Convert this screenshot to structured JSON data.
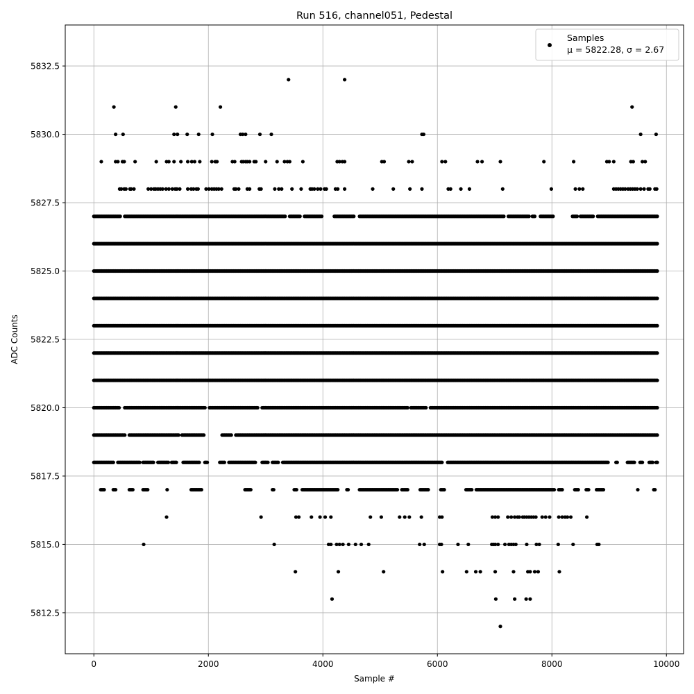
{
  "chart_data": {
    "type": "scatter",
    "title": "Run 516, channel051, Pedestal",
    "xlabel": "Sample #",
    "ylabel": "ADC Counts",
    "xlim": [
      -500,
      10300
    ],
    "ylim": [
      5811,
      5834
    ],
    "xticks": [
      0,
      2000,
      4000,
      6000,
      8000,
      10000
    ],
    "xtick_labels": [
      "0",
      "2000",
      "4000",
      "6000",
      "8000",
      "10000"
    ],
    "yticks": [
      5812.5,
      5815.0,
      5817.5,
      5820.0,
      5822.5,
      5825.0,
      5827.5,
      5830.0,
      5832.5
    ],
    "ytick_labels": [
      "5812.5",
      "5815.0",
      "5817.5",
      "5820.0",
      "5822.5",
      "5825.0",
      "5827.5",
      "5830.0",
      "5832.5"
    ],
    "grid": true,
    "legend_position": "top-right",
    "marker_color": "#000000",
    "series": [
      {
        "name": "Samples",
        "stats_label": "μ = 5822.28, σ = 2.67",
        "n_samples": 9840,
        "levels": [
          {
            "y": 5832,
            "x": [
              3400,
              4380
            ]
          },
          {
            "y": 5831,
            "x": [
              350,
              1430,
              2210,
              9400
            ]
          },
          {
            "y": 5830,
            "x": [
              380,
              510,
              1400,
              1460,
              1630,
              1830,
              2070,
              2560,
              2600,
              2650,
              2900,
              3100,
              5730,
              5760,
              9550,
              9820
            ]
          },
          {
            "y": 5829,
            "x": [
              130,
              380,
              420,
              500,
              530,
              720,
              1090,
              1270,
              1310,
              1400,
              1520,
              1640,
              1710,
              1760,
              1850,
              2060,
              2120,
              2150,
              2420,
              2460,
              2580,
              2610,
              2650,
              2680,
              2720,
              2800,
              2830,
              3000,
              3200,
              3330,
              3380,
              3420,
              3650,
              4250,
              4290,
              4340,
              4380,
              5030,
              5070,
              5500,
              5560,
              6080,
              6140,
              6700,
              6780,
              7100,
              7860,
              8380,
              8960,
              9000,
              9080,
              9380,
              9420,
              9580,
              9630
            ]
          },
          {
            "y": 5828,
            "x": [
              450,
              480,
              530,
              560,
              630,
              650,
              700,
              950,
              1000,
              1050,
              1080,
              1120,
              1160,
              1200,
              1260,
              1310,
              1370,
              1420,
              1450,
              1500,
              1640,
              1700,
              1740,
              1790,
              1820,
              1960,
              2010,
              2060,
              2100,
              2140,
              2180,
              2230,
              2450,
              2480,
              2530,
              2680,
              2720,
              2890,
              2920,
              3160,
              3230,
              3280,
              3460,
              3620,
              3780,
              3810,
              3850,
              3910,
              3960,
              4030,
              4060,
              4220,
              4260,
              4380,
              4870,
              5230,
              5520,
              5730,
              6190,
              6230,
              6410,
              6560,
              7140,
              7990,
              8410,
              8480,
              8540,
              9080,
              9120,
              9160,
              9200,
              9240,
              9280,
              9330,
              9370,
              9410,
              9450,
              9490,
              9550,
              9610,
              9680,
              9710,
              9800,
              9830
            ]
          }
        ],
        "band_levels": [
          5817,
          5818,
          5819,
          5820,
          5821,
          5822,
          5823,
          5824,
          5825,
          5826,
          5827
        ],
        "band_gaps": {
          "5817": [
            [
              0,
              100
            ],
            [
              200,
              320
            ],
            [
              400,
              600
            ],
            [
              700,
              850
            ],
            [
              950,
              1260
            ],
            [
              1300,
              1680
            ],
            [
              1900,
              2630
            ],
            [
              2760,
              3100
            ],
            [
              3150,
              3480
            ],
            [
              3560,
              3620
            ],
            [
              4280,
              4400
            ],
            [
              4460,
              4620
            ],
            [
              5320,
              5370
            ],
            [
              5500,
              5690
            ],
            [
              5850,
              6050
            ],
            [
              6130,
              6480
            ],
            [
              6620,
              6660
            ],
            [
              8060,
              8110
            ],
            [
              8200,
              8390
            ],
            [
              8480,
              8590
            ],
            [
              8650,
              8760
            ],
            [
              8920,
              9480
            ],
            [
              9520,
              9770
            ],
            [
              9810,
              9840
            ]
          ],
          "5818": [
            [
              360,
              400
            ],
            [
              820,
              850
            ],
            [
              1060,
              1100
            ],
            [
              1320,
              1350
            ],
            [
              1460,
              1550
            ],
            [
              1850,
              1930
            ],
            [
              2000,
              2180
            ],
            [
              2290,
              2350
            ],
            [
              2840,
              2920
            ],
            [
              3060,
              3110
            ],
            [
              3230,
              3280
            ],
            [
              6090,
              6160
            ],
            [
              9000,
              9100
            ],
            [
              9150,
              9300
            ],
            [
              9450,
              9520
            ],
            [
              9600,
              9680
            ],
            [
              9770,
              9800
            ]
          ],
          "5819": [
            [
              550,
              610
            ],
            [
              1500,
              1530
            ],
            [
              1940,
              2220
            ],
            [
              2420,
              2470
            ]
          ],
          "5820": [
            [
              450,
              520
            ],
            [
              1960,
              2000
            ],
            [
              2880,
              2920
            ],
            [
              5500,
              5520
            ],
            [
              5820,
              5870
            ]
          ],
          "5827": [
            [
              470,
              520
            ],
            [
              3360,
              3410
            ],
            [
              3620,
              3660
            ],
            [
              4000,
              4180
            ],
            [
              4560,
              4620
            ],
            [
              7170,
              7220
            ],
            [
              7620,
              7650
            ],
            [
              7720,
              7790
            ],
            [
              8040,
              8340
            ],
            [
              8450,
              8480
            ],
            [
              8740,
              8780
            ]
          ]
        },
        "low_levels": [
          {
            "y": 5816,
            "x": [
              1270,
              2920,
              3530,
              3580,
              3800,
              3950,
              4040,
              4140,
              4830,
              5020,
              5340,
              5430,
              5510,
              5720,
              6040,
              6080,
              6960,
              7010,
              7060,
              7230,
              7290,
              7350,
              7400,
              7430,
              7490,
              7520,
              7560,
              7600,
              7640,
              7680,
              7720,
              7830,
              7890,
              7960,
              8120,
              8180,
              8230,
              8270,
              8330,
              8610
            ]
          },
          {
            "y": 5815,
            "x": [
              870,
              3150,
              4100,
              4140,
              4240,
              4290,
              4350,
              4450,
              4570,
              4670,
              4800,
              5690,
              5770,
              6040,
              6070,
              6360,
              6540,
              6950,
              6980,
              7010,
              7060,
              7180,
              7250,
              7290,
              7330,
              7370,
              7560,
              7730,
              7780,
              8110,
              8370,
              8790,
              8820
            ]
          },
          {
            "y": 5814,
            "x": [
              3520,
              4270,
              5060,
              6090,
              6510,
              6670,
              6750,
              7010,
              7330,
              7580,
              7620,
              7700,
              7760,
              8130
            ]
          },
          {
            "y": 5813,
            "x": [
              4160,
              7020,
              7350,
              7550,
              7620
            ]
          },
          {
            "y": 5812,
            "x": [
              7100
            ]
          }
        ]
      }
    ]
  }
}
